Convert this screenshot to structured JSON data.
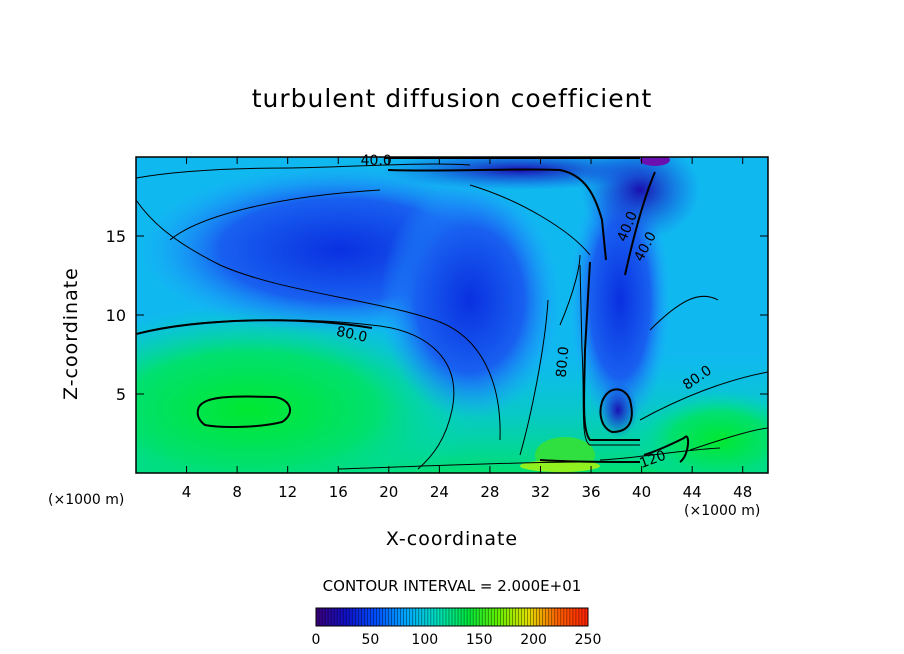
{
  "chart_data": {
    "type": "heatmap",
    "title": "turbulent diffusion coefficient",
    "xlabel": "X-coordinate",
    "ylabel": "Z-coordinate",
    "x_unit_label": "(×1000 m)",
    "xlim": [
      0,
      50
    ],
    "ylim": [
      0,
      20
    ],
    "x_ticks": [
      4,
      8,
      12,
      16,
      20,
      24,
      28,
      32,
      36,
      40,
      44,
      48
    ],
    "y_ticks": [
      5,
      10,
      15
    ],
    "contour_interval_text": "CONTOUR INTERVAL = 2.000E+01",
    "contour_labels": [
      "40.0",
      "40.0",
      "40.0",
      "80.0",
      "80.0",
      "80.0",
      "120"
    ],
    "colorbar": {
      "range": [
        0,
        250
      ],
      "tick_labels": [
        "0",
        "50",
        "100",
        "150",
        "200",
        "250"
      ],
      "colormap": [
        "#3a007a",
        "#1010c8",
        "#0050ff",
        "#00a8ff",
        "#00e0c0",
        "#00e840",
        "#60f000",
        "#e0e000",
        "#ff6000",
        "#ff2000"
      ]
    }
  }
}
